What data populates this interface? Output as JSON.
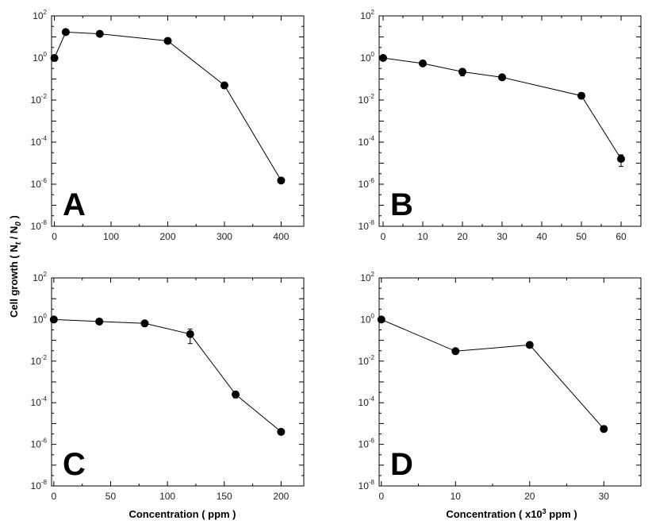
{
  "ylabel": {
    "main": "Cell growth ( N",
    "sub1": "t",
    "mid": " / N",
    "sub2": "0",
    "end": " )"
  },
  "xlabel_bottom_left": "Concentration ( ppm )",
  "xlabel_bottom_right": {
    "pre": "Concentration ( x10",
    "sup": "3",
    "post": " ppm )"
  },
  "chart_data": [
    {
      "panel": "A",
      "type": "scatter",
      "connected": true,
      "y_scale": "log",
      "x": [
        0,
        20,
        80,
        200,
        300,
        400
      ],
      "y": [
        1.0,
        17,
        14,
        6.5,
        0.05,
        1.5e-06
      ],
      "y_err_low": [
        0.7,
        13,
        12,
        5.5,
        0.035,
        1.3e-06
      ],
      "y_err_high": [
        1.3,
        20,
        16,
        7.5,
        0.065,
        1.7e-06
      ],
      "xlim": [
        -5,
        440
      ],
      "ylim": [
        1e-08,
        100
      ],
      "xticks": [
        0,
        100,
        200,
        300,
        400
      ],
      "ytick_exponents": [
        -8,
        -6,
        -4,
        -2,
        0,
        2
      ]
    },
    {
      "panel": "B",
      "type": "scatter",
      "connected": true,
      "y_scale": "log",
      "x": [
        0,
        10,
        20,
        30,
        50,
        60
      ],
      "y": [
        1.0,
        0.55,
        0.22,
        0.12,
        0.016,
        1.6e-05
      ],
      "y_err_low": [
        0.85,
        0.45,
        0.14,
        0.1,
        0.013,
        7e-06
      ],
      "y_err_high": [
        1.2,
        0.65,
        0.3,
        0.14,
        0.019,
        2.5e-05
      ],
      "xlim": [
        -1,
        65
      ],
      "ylim": [
        1e-08,
        100
      ],
      "xticks": [
        0,
        10,
        20,
        30,
        40,
        50,
        60
      ],
      "ytick_exponents": [
        -8,
        -6,
        -4,
        -2,
        0,
        2
      ]
    },
    {
      "panel": "C",
      "type": "scatter",
      "connected": true,
      "y_scale": "log",
      "x": [
        0,
        40,
        80,
        120,
        160,
        200
      ],
      "y": [
        1.0,
        0.8,
        0.65,
        0.2,
        0.00025,
        4e-06
      ],
      "y_err_low": [
        0.9,
        0.7,
        0.55,
        0.07,
        0.00017,
        3.5e-06
      ],
      "y_err_high": [
        1.1,
        0.9,
        0.75,
        0.35,
        0.00032,
        4.5e-06
      ],
      "xlim": [
        -2,
        220
      ],
      "ylim": [
        1e-08,
        100
      ],
      "xticks": [
        0,
        50,
        100,
        150,
        200
      ],
      "ytick_exponents": [
        -8,
        -6,
        -4,
        -2,
        0,
        2
      ]
    },
    {
      "panel": "D",
      "type": "scatter",
      "connected": true,
      "y_scale": "log",
      "x": [
        0,
        10,
        20,
        30
      ],
      "y": [
        1.0,
        0.03,
        0.06,
        5.5e-06
      ],
      "y_err_low": [
        0.9,
        0.027,
        0.055,
        4.5e-06
      ],
      "y_err_high": [
        1.1,
        0.033,
        0.065,
        6.5e-06
      ],
      "xlim": [
        -0.3,
        35
      ],
      "ylim": [
        1e-08,
        100
      ],
      "xticks": [
        0,
        10,
        20,
        30
      ],
      "ytick_exponents": [
        -8,
        -6,
        -4,
        -2,
        0,
        2
      ]
    }
  ]
}
